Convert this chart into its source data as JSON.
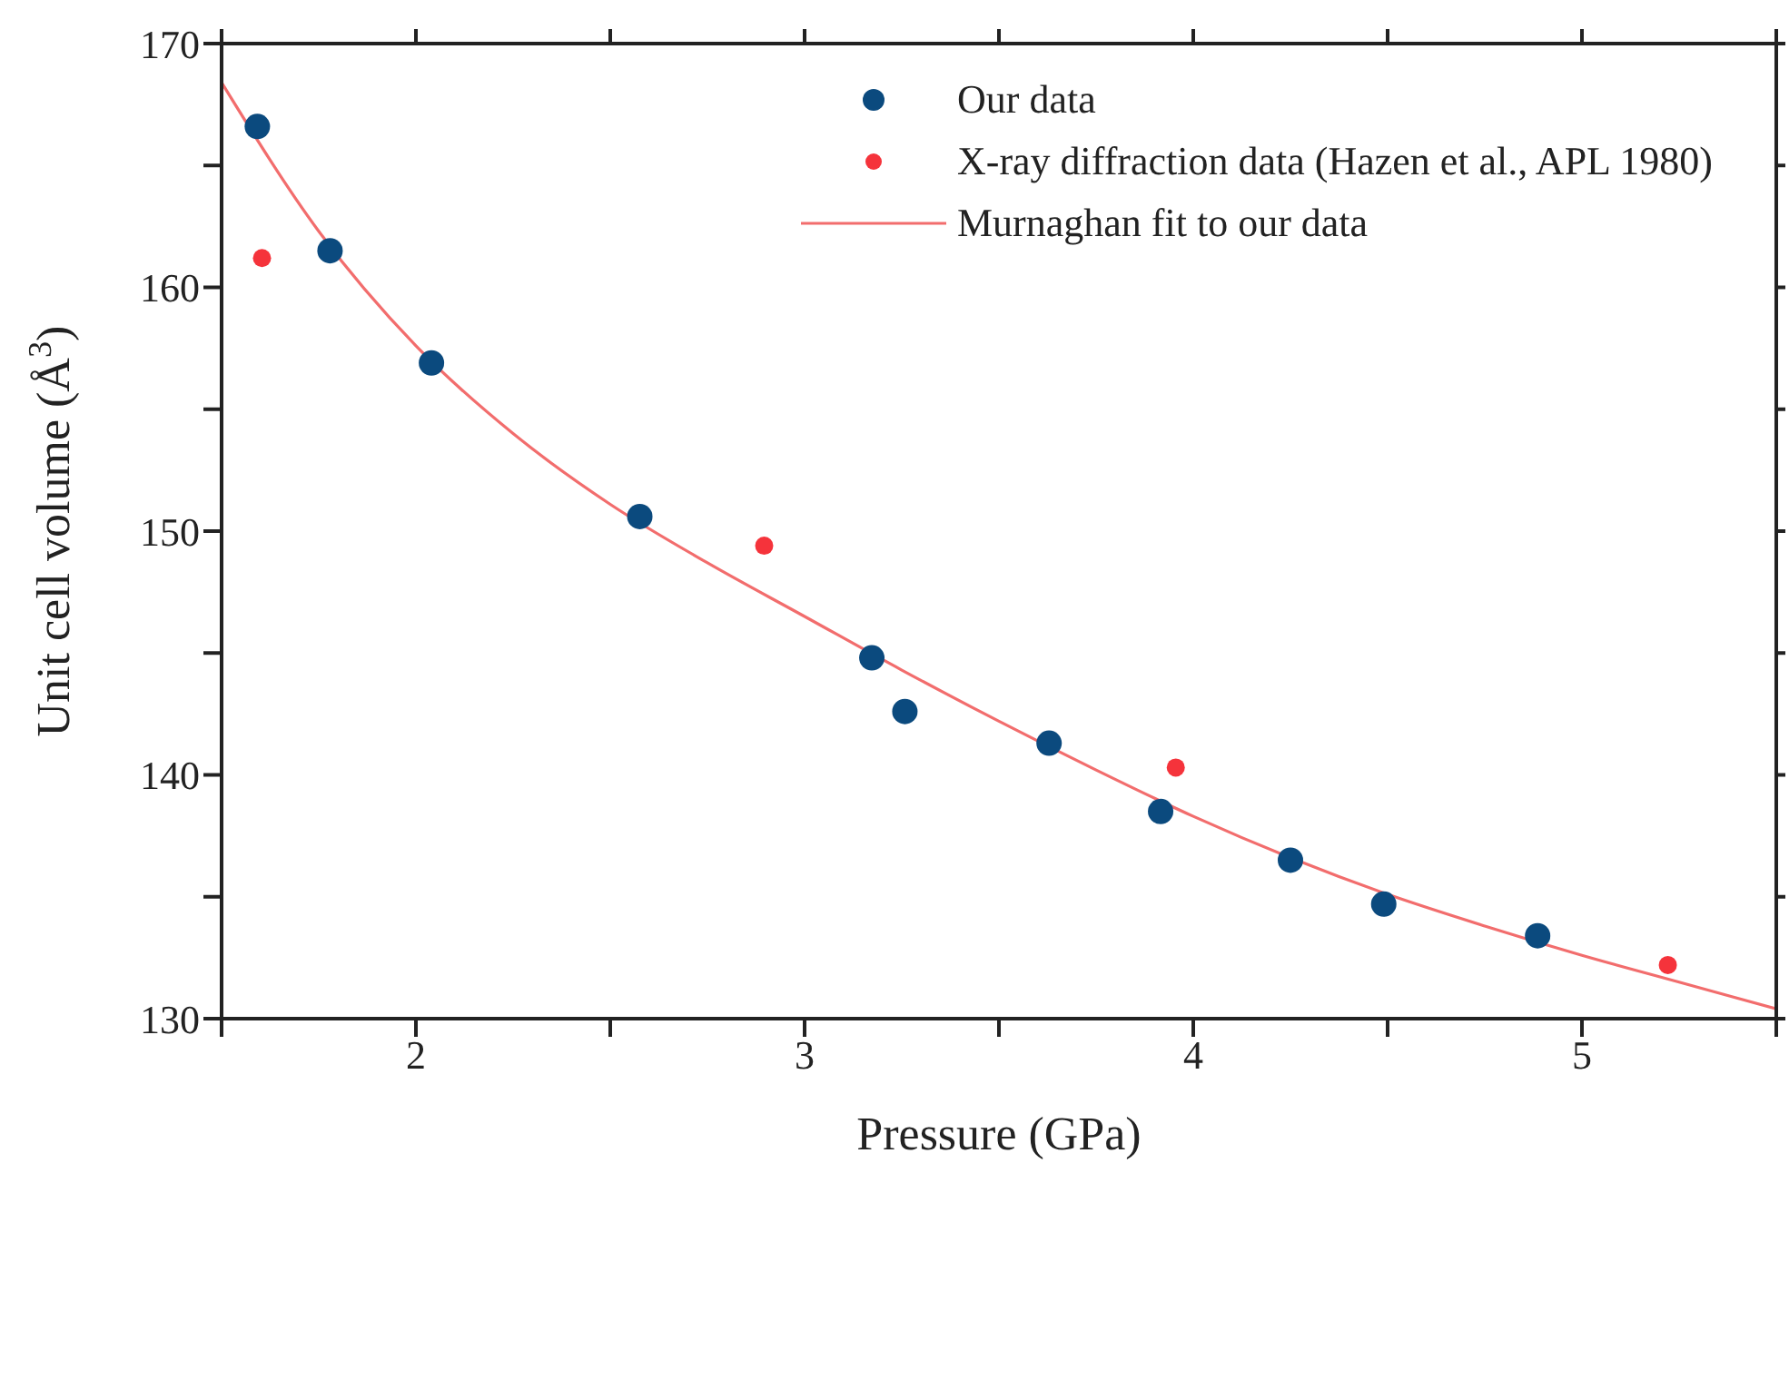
{
  "chart_data": {
    "type": "scatter",
    "xlabel": "Pressure (GPa)",
    "ylabel": "Unit cell volume (Å$^{3}$)",
    "xlim": [
      1.5,
      5.5
    ],
    "ylim": [
      130,
      170
    ],
    "xticks": [
      {
        "value": 1.5,
        "label": null
      },
      2,
      {
        "value": 2.5,
        "label": null
      },
      3,
      {
        "value": 3.5,
        "label": null
      },
      4,
      {
        "value": 4.5,
        "label": null
      },
      5,
      {
        "value": 5.5,
        "label": null
      }
    ],
    "yticks": [
      130,
      {
        "value": 135,
        "label": null
      },
      140,
      {
        "value": 145,
        "label": null
      },
      150,
      {
        "value": 155,
        "label": null
      },
      160,
      {
        "value": 165,
        "label": null
      },
      170
    ],
    "legend": "top right",
    "marker": "circle",
    "series": [
      {
        "name": "Our data",
        "color": "#0b4a7e",
        "x": [
          1.592,
          1.779,
          2.04,
          2.576,
          3.173,
          3.258,
          3.629,
          3.916,
          4.25,
          4.49,
          4.886
        ],
        "values": [
          166.6,
          161.5,
          156.9,
          150.6,
          144.8,
          142.6,
          141.3,
          138.5,
          136.5,
          134.7,
          133.4
        ]
      },
      {
        "name": "X-ray diffraction data (Hazen et al., APL 1980)",
        "color": "#f5333b",
        "x": [
          1.604,
          2.896,
          3.955,
          5.221
        ],
        "values": [
          161.2,
          149.4,
          140.3,
          132.2
        ]
      },
      {
        "name": "Murnaghan fit to our data",
        "type": "line",
        "color": "#f26d6d",
        "marker": "none",
        "line_style": "solid",
        "x": [
          1.5,
          1.75,
          2.0,
          2.25,
          2.5,
          2.75,
          3.0,
          3.25,
          3.5,
          3.75,
          4.0,
          4.25,
          4.5,
          4.75,
          5.0,
          5.25,
          5.5
        ],
        "values": [
          168.4,
          162.3,
          157.6,
          154.0,
          151.1,
          148.7,
          146.5,
          144.3,
          142.2,
          140.2,
          138.3,
          136.6,
          135.1,
          133.8,
          132.6,
          131.5,
          130.4
        ]
      }
    ]
  }
}
